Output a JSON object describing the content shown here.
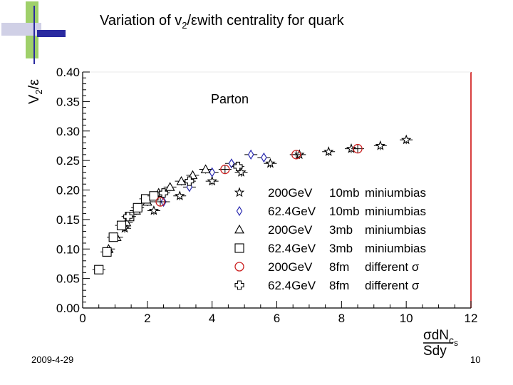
{
  "slide": {
    "title_pre": "Variation of  v",
    "title_sub": "2",
    "title_post": "/εwith centrality for quark",
    "footer_date": "2009-4-29",
    "page_number": "10"
  },
  "chart_data": {
    "type": "scatter",
    "title": "",
    "annotation": "Parton",
    "ylabel": {
      "main": "V",
      "sub": "2",
      "rest": "/ε"
    },
    "xlabel": {
      "num_1": "σdN",
      "num_sub": "c",
      "num_2": "s",
      "den": "Sdy"
    },
    "xlim": [
      0,
      12
    ],
    "ylim": [
      0,
      0.4
    ],
    "x_ticks": [
      "0",
      "2",
      "4",
      "6",
      "8",
      "10",
      "12"
    ],
    "y_ticks": [
      "0.00",
      "0.05",
      "0.10",
      "0.15",
      "0.20",
      "0.25",
      "0.30",
      "0.35",
      "0.40"
    ],
    "grid": false,
    "legend_position": "right",
    "colors": {
      "axis": "#000000",
      "frame_right": "#cc0000",
      "diamond": "#2a2ab0",
      "circle": "#cc2222",
      "other": "#000000"
    },
    "series": [
      {
        "name": "200GeV  10mb  miniumbias",
        "legend_cols": [
          "200GeV",
          "10mb",
          "miniumbias"
        ],
        "marker": "star",
        "points": [
          [
            1.3,
            0.135
          ],
          [
            2.2,
            0.165
          ],
          [
            3.0,
            0.19
          ],
          [
            4.0,
            0.215
          ],
          [
            4.9,
            0.23
          ],
          [
            5.8,
            0.245
          ],
          [
            6.7,
            0.26
          ],
          [
            7.6,
            0.265
          ],
          [
            8.3,
            0.27
          ],
          [
            9.2,
            0.275
          ],
          [
            10.0,
            0.285
          ]
        ]
      },
      {
        "name": "62.4GeV 10mb  miniumbias",
        "legend_cols": [
          "62.4GeV",
          "10mb",
          "miniumbias"
        ],
        "marker": "diamond",
        "points": [
          [
            2.5,
            0.18
          ],
          [
            3.3,
            0.205
          ],
          [
            4.0,
            0.23
          ],
          [
            4.6,
            0.245
          ],
          [
            5.2,
            0.26
          ],
          [
            5.6,
            0.255
          ]
        ]
      },
      {
        "name": "200GeV    3mb  miniumbias",
        "legend_cols": [
          "200GeV",
          "3mb",
          "miniumbias"
        ],
        "marker": "triangle",
        "points": [
          [
            0.8,
            0.1
          ],
          [
            1.05,
            0.12
          ],
          [
            1.35,
            0.145
          ],
          [
            1.65,
            0.165
          ],
          [
            2.0,
            0.18
          ],
          [
            2.35,
            0.195
          ],
          [
            2.7,
            0.205
          ],
          [
            3.05,
            0.215
          ],
          [
            3.4,
            0.225
          ],
          [
            3.8,
            0.235
          ]
        ]
      },
      {
        "name": "62.4GeV   3mb  miniumbias",
        "legend_cols": [
          "62.4GeV",
          "3mb",
          "miniumbias"
        ],
        "marker": "square",
        "points": [
          [
            0.5,
            0.065
          ],
          [
            0.75,
            0.095
          ],
          [
            0.95,
            0.12
          ],
          [
            1.2,
            0.14
          ],
          [
            1.45,
            0.155
          ],
          [
            1.7,
            0.17
          ],
          [
            1.95,
            0.185
          ],
          [
            2.2,
            0.19
          ]
        ]
      },
      {
        "name": "200GeV    8fm   different σ",
        "legend_cols": [
          "200GeV",
          "8fm",
          "different σ"
        ],
        "marker": "circle",
        "points": [
          [
            2.4,
            0.18
          ],
          [
            4.4,
            0.235
          ],
          [
            6.6,
            0.26
          ],
          [
            8.5,
            0.27
          ]
        ]
      },
      {
        "name": "62.4GeV   8fm   different σ",
        "legend_cols": [
          "62.4GeV",
          "8fm",
          "different σ"
        ],
        "marker": "cross",
        "points": [
          [
            1.4,
            0.155
          ],
          [
            2.5,
            0.195
          ],
          [
            3.3,
            0.215
          ],
          [
            4.8,
            0.24
          ]
        ]
      }
    ]
  }
}
